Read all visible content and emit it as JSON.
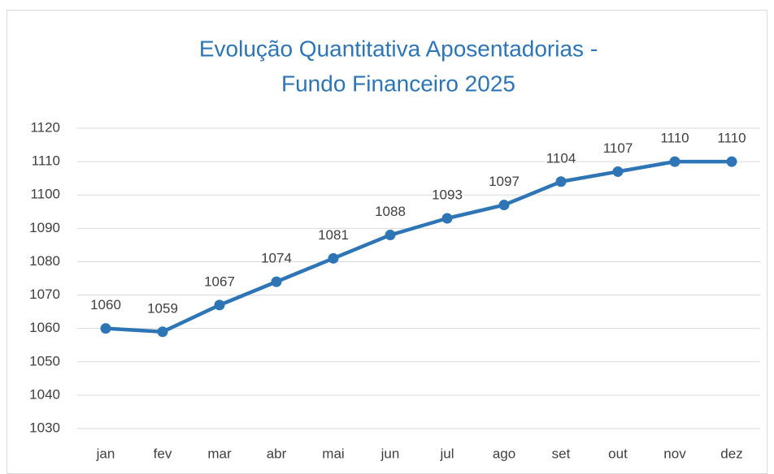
{
  "chart_data": {
    "type": "line",
    "title": [
      "Evolução Quantitativa Aposentadorias -",
      "Fundo Financeiro 2025"
    ],
    "categories": [
      "jan",
      "fev",
      "mar",
      "abr",
      "mai",
      "jun",
      "jul",
      "ago",
      "set",
      "out",
      "nov",
      "dez"
    ],
    "series": [
      {
        "name": "Aposentadorias",
        "color": "#2e75b6",
        "values": [
          1060,
          1059,
          1067,
          1074,
          1081,
          1088,
          1093,
          1097,
          1104,
          1107,
          1110,
          1110
        ]
      }
    ],
    "ylim": [
      1030,
      1120
    ],
    "yticks": [
      1030,
      1040,
      1050,
      1060,
      1070,
      1080,
      1090,
      1100,
      1110,
      1120
    ],
    "grid": true,
    "legend": false
  }
}
